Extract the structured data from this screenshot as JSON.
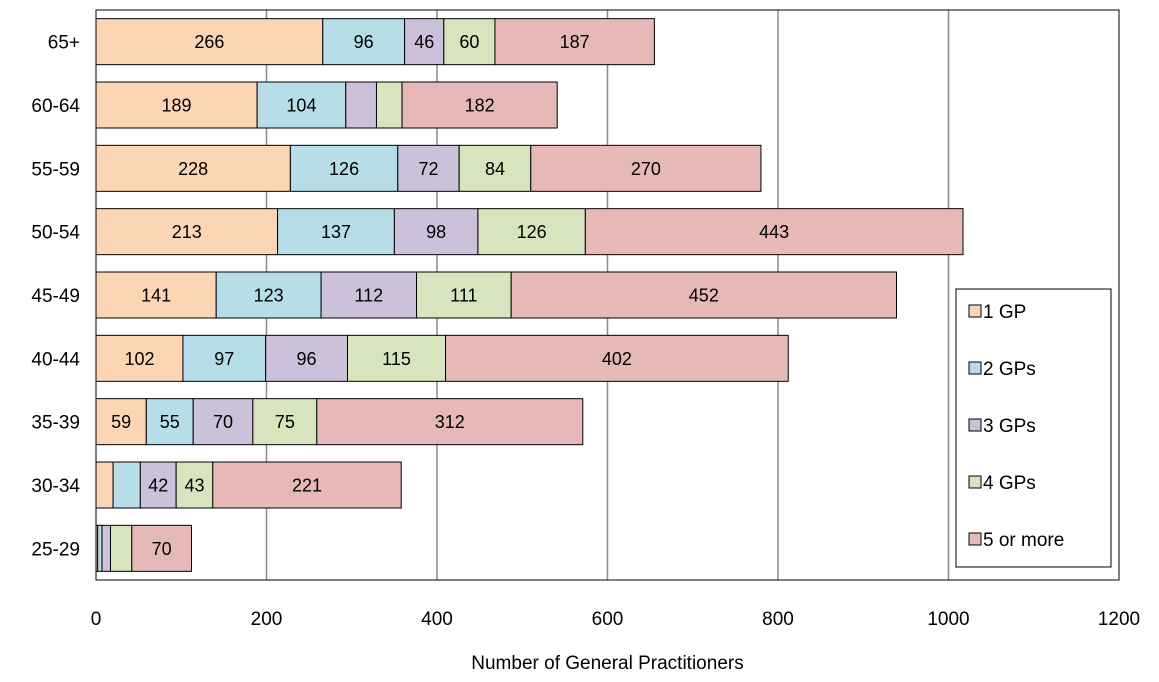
{
  "chart_data": {
    "type": "bar",
    "orientation": "horizontal",
    "stacked": true,
    "title": "",
    "xlabel": "Number of General Practitioners",
    "ylabel": "",
    "xlim": [
      0,
      1200
    ],
    "xticks": [
      0,
      200,
      400,
      600,
      800,
      1000,
      1200
    ],
    "grid": "vertical",
    "legend_position": "bottom-right",
    "categories": [
      "25-29",
      "30-34",
      "35-39",
      "40-44",
      "45-49",
      "50-54",
      "55-59",
      "60-64",
      "65+"
    ],
    "series": [
      {
        "name": "1 GP",
        "color": "#FCD5B5",
        "values": [
          2,
          20,
          59,
          102,
          141,
          213,
          228,
          189,
          266
        ],
        "labels": [
          "",
          "",
          "59",
          "102",
          "141",
          "213",
          "228",
          "189",
          "266"
        ]
      },
      {
        "name": "2 GPs",
        "color": "#B7DDE8",
        "values": [
          5,
          32,
          55,
          97,
          123,
          137,
          126,
          104,
          96
        ],
        "labels": [
          "",
          "",
          "55",
          "97",
          "123",
          "137",
          "126",
          "104",
          "96"
        ]
      },
      {
        "name": "3 GPs",
        "color": "#CCC1DA",
        "values": [
          10,
          42,
          70,
          96,
          112,
          98,
          72,
          36,
          46
        ],
        "labels": [
          "",
          "42",
          "70",
          "96",
          "112",
          "98",
          "72",
          "",
          "46"
        ]
      },
      {
        "name": "4 GPs",
        "color": "#D7E4BD",
        "values": [
          25,
          43,
          75,
          115,
          111,
          126,
          84,
          30,
          60
        ],
        "labels": [
          "",
          "43",
          "75",
          "115",
          "111",
          "126",
          "84",
          "",
          "60"
        ]
      },
      {
        "name": "5 or more",
        "color": "#E6B9B8",
        "values": [
          70,
          221,
          312,
          402,
          452,
          443,
          270,
          182,
          187
        ],
        "labels": [
          "70",
          "221",
          "312",
          "402",
          "452",
          "443",
          "270",
          "182",
          "187"
        ]
      }
    ]
  }
}
